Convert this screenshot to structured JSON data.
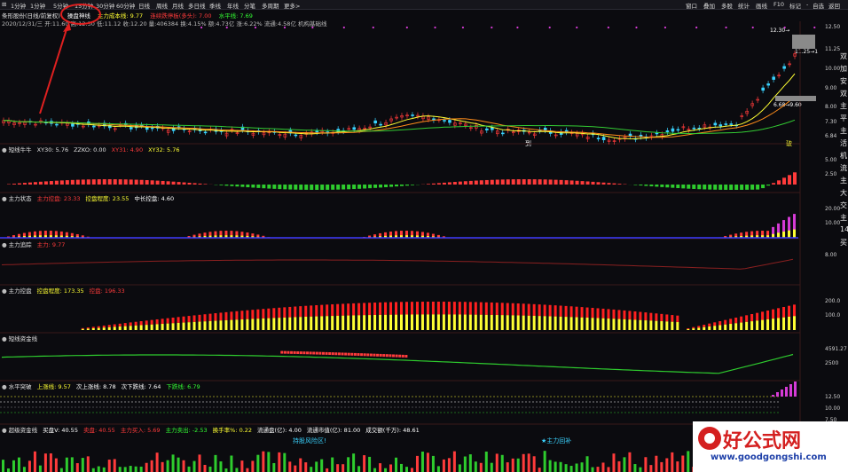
{
  "menubar": {
    "items": [
      "1分钟",
      "1分钟",
      "5分钟",
      "15分钟",
      "30分钟",
      "60分钟",
      "日线",
      "周线",
      "月线",
      "多日线",
      "季线",
      "年线",
      "分笔",
      "多周期",
      "更多>"
    ],
    "right_items": [
      "窗口",
      "叠加",
      "多股",
      "统计",
      "画线",
      "F10",
      "标记",
      "-",
      "自选",
      "返回"
    ]
  },
  "main": {
    "title_line1": "条形股份(日线/前复权)",
    "indicator_name": "操盘神线",
    "cost_line": "主力成本线: 9.77",
    "drop_signal": "连续跌停板(多头): 7.00",
    "water_level": "水平线: 7.69",
    "info_line2": "2020/12/31/三 开:11.60 高:12.30 低:11.12 收:12.20 量:406384 换:4.15% 额:4.73亿 涨:6.22% 流通:4.58亿 机构基础线",
    "price_labels": [
      "12.50",
      "11.25",
      "10.00",
      "9.00",
      "8.00",
      "7.30",
      "6.84"
    ],
    "annotation_high": "12.30→",
    "annotation_mid": "11.25→1",
    "annotation_low": "6.68→9.60",
    "bottom_labels": [
      "到",
      "破"
    ]
  },
  "side_chars": [
    "双",
    "加",
    "安",
    "双",
    "主",
    "平",
    "主",
    "活",
    "机",
    "流",
    "主",
    "大",
    "交",
    "主",
    "14",
    "买"
  ],
  "panes": [
    {
      "title": "短线牛牛",
      "items": [
        {
          "t": "XY30: 5.76",
          "c": "#e0e0e0"
        },
        {
          "t": "ZZKO: 0.00",
          "c": "#e0e0e0"
        },
        {
          "t": "XY31: 4.90",
          "c": "#ff3b3b"
        },
        {
          "t": "XY32: 5.76",
          "c": "#ffff33"
        }
      ],
      "labels": [
        "5.00",
        "2.50"
      ]
    },
    {
      "title": "主力状态",
      "items": [
        {
          "t": "主力控盘: 23.33",
          "c": "#ff3b3b"
        },
        {
          "t": "控盘程度: 23.55",
          "c": "#ffff33"
        },
        {
          "t": "中长控盘: 4.60",
          "c": "#ffffff"
        },
        {
          "t": "",
          "c": "#3b3bff"
        }
      ],
      "labels": [
        "20.00",
        "10.00"
      ]
    },
    {
      "title": "主力追踪",
      "items": [
        {
          "t": "主力: 9.77",
          "c": "#ff3b3b"
        }
      ],
      "labels": [
        "8.00"
      ]
    },
    {
      "title": "主力控盘",
      "items": [
        {
          "t": "控盘程度: 173.35",
          "c": "#ffff33"
        },
        {
          "t": "控盘: 196.33",
          "c": "#ff3b3b"
        }
      ],
      "labels": [
        "200.0",
        "100.0"
      ]
    },
    {
      "title": "短线资金线",
      "items": [],
      "labels": [
        "4591.27",
        "2500"
      ]
    },
    {
      "title": "水平突破",
      "items": [
        {
          "t": "上涨线: 9.57",
          "c": "#ffff33"
        },
        {
          "t": "次上涨线: 8.78",
          "c": "#ffffff"
        },
        {
          "t": "次下跌线: 7.64",
          "c": "#ffffff"
        },
        {
          "t": "下跌线: 6.79",
          "c": "#33ff33"
        }
      ],
      "labels": [
        "12.50",
        "10.00",
        "7.50"
      ]
    },
    {
      "title": "超级资金线",
      "items": [
        {
          "t": "买盘V: 40.55",
          "c": "#ffffff"
        },
        {
          "t": "卖盘: 40.55",
          "c": "#ff3b3b"
        },
        {
          "t": "主力买入: 5.69",
          "c": "#ff3b3b"
        },
        {
          "t": "主力卖出: -2.53",
          "c": "#33ff33"
        },
        {
          "t": "换手率%: 0.22",
          "c": "#ffff33"
        },
        {
          "t": "流通盘(亿): 4.00",
          "c": "#ffffff"
        },
        {
          "t": "流通市值(亿): 81.00",
          "c": "#ffffff"
        },
        {
          "t": "成交额(千万): 48.61",
          "c": "#ffffff"
        }
      ],
      "labels": []
    }
  ],
  "bottom_notes": {
    "left": "持股风险区!",
    "right": "★主力回补"
  },
  "watermark": {
    "title": "好公式网",
    "url": "www.goodgongshi.com"
  }
}
